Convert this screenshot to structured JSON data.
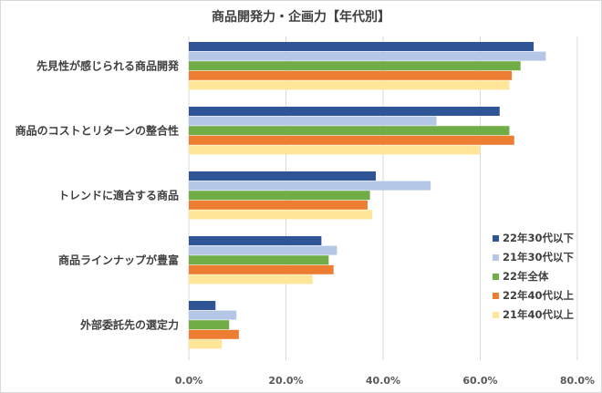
{
  "chart_data": {
    "type": "bar",
    "orientation": "horizontal",
    "title": "商品開発力・企画力【年代別】",
    "xlabel": "",
    "ylabel": "",
    "categories": [
      "先見性が感じられる商品開発",
      "商品のコストとリターンの整合性",
      "トレンドに適合する商品",
      "商品ラインナップが豊富",
      "外部委託先の選定力"
    ],
    "series": [
      {
        "name": "22年30代以下",
        "color": "#2f5597",
        "values": [
          71.0,
          64.0,
          38.5,
          27.3,
          5.5
        ]
      },
      {
        "name": "21年30代以下",
        "color": "#b4c7e7",
        "values": [
          73.5,
          51.0,
          49.8,
          30.5,
          9.8
        ]
      },
      {
        "name": "22年全体",
        "color": "#70ad47",
        "values": [
          68.3,
          66.0,
          37.3,
          28.8,
          8.3
        ]
      },
      {
        "name": "22年40代以上",
        "color": "#ed7d31",
        "values": [
          66.5,
          67.0,
          36.8,
          29.8,
          10.3
        ]
      },
      {
        "name": "21年40代以上",
        "color": "#ffe699",
        "values": [
          66.0,
          60.0,
          37.8,
          25.5,
          6.8
        ]
      }
    ],
    "xlim": [
      0,
      80
    ],
    "xticks": [
      0,
      20,
      40,
      60,
      80
    ],
    "tick_labels": [
      "0.0%",
      "20.0%",
      "40.0%",
      "60.0%",
      "80.0%"
    ],
    "grid": true,
    "legend_position": "right"
  }
}
